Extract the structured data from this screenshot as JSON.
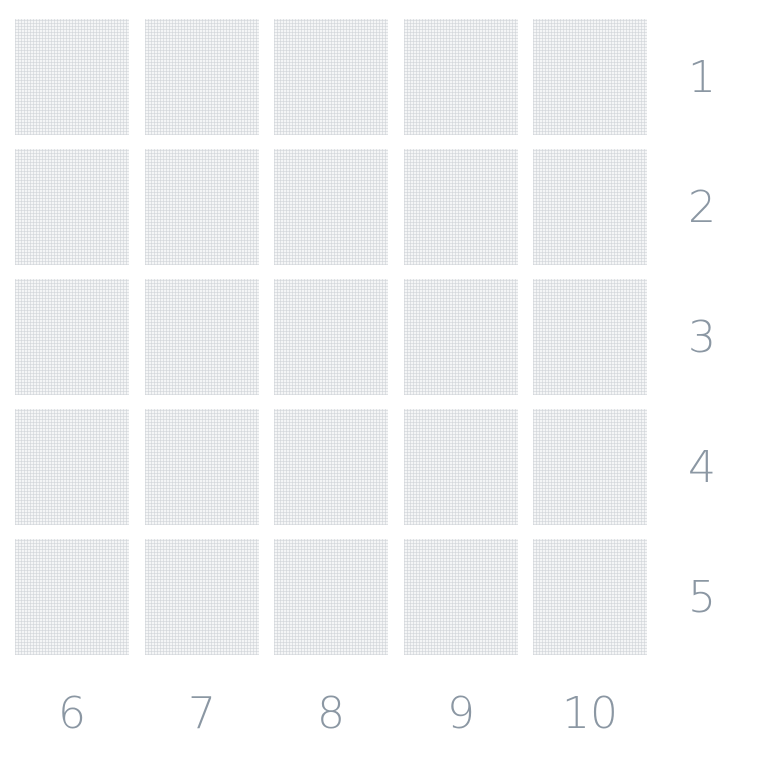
{
  "grid": {
    "rows": 5,
    "cols": 5,
    "row_labels": [
      "1",
      "2",
      "3",
      "4",
      "5"
    ],
    "col_labels": [
      "6",
      "7",
      "8",
      "9",
      "10"
    ]
  },
  "colors": {
    "cell_fill": "#f4f5f6",
    "cell_dots": "#cdd1d6",
    "label_text": "#8b97a3"
  }
}
